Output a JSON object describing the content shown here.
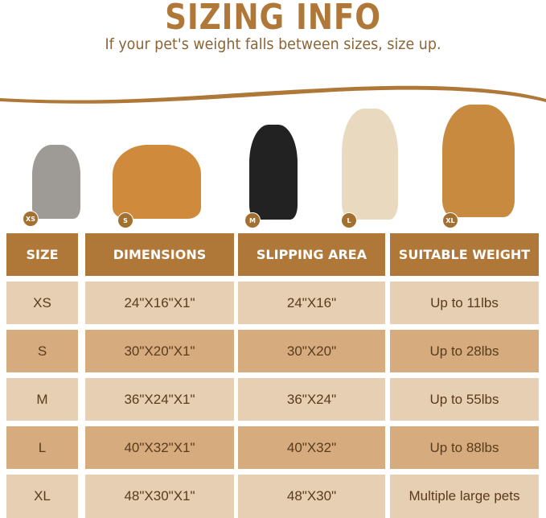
{
  "title": "SIZING INFO",
  "subtitle": "If your pet's weight falls between sizes, size up.",
  "pets": [
    {
      "badge": "XS",
      "animal": "cat",
      "color": "#9e9a96"
    },
    {
      "badge": "S",
      "animal": "corgi",
      "color": "#d08a3c"
    },
    {
      "badge": "M",
      "animal": "border-collie",
      "color": "#222222"
    },
    {
      "badge": "L",
      "animal": "labrador",
      "color": "#e8d9bf"
    },
    {
      "badge": "XL",
      "animal": "golden-retriever",
      "color": "#c88a3e"
    }
  ],
  "table": {
    "headers": [
      "SIZE",
      "DIMENSIONS",
      "SLIPPING AREA",
      "SUITABLE WEIGHT"
    ],
    "rows": [
      [
        "XS",
        "24\"X16\"X1\"",
        "24\"X16\"",
        "Up to 11lbs"
      ],
      [
        "S",
        "30\"X20\"X1\"",
        "30\"X20\"",
        "Up to 28lbs"
      ],
      [
        "M",
        "36\"X24\"X1\"",
        "36\"X24\"",
        "Up to 55lbs"
      ],
      [
        "L",
        "40\"X32\"X1\"",
        "40\"X32\"",
        "Up to 88lbs"
      ],
      [
        "XL",
        "48\"X30\"X1\"",
        "48\"X30\"",
        "Multiple large pets"
      ]
    ]
  },
  "colors": {
    "brand": "#b07838",
    "row_light": "#e6cfb3",
    "row_dark": "#d6ab7e"
  }
}
